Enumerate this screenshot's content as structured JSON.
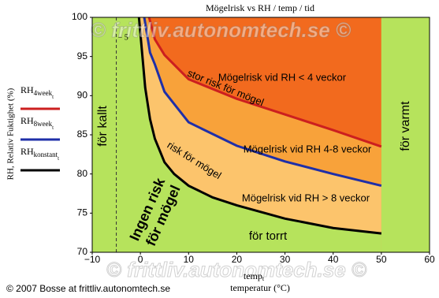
{
  "chart_data": {
    "type": "line",
    "title": "Mögelrisk vs RH / temp / tid",
    "y_label": "RH, Relativ Fuktighet (%)",
    "x_label": {
      "main": "temp",
      "sub": "t",
      "text": "temperatur (°C)"
    },
    "copyright": "© 2007 Bosse at frittliv.autonomtech.se",
    "watermark": "© frittliv.autonomtech.se ©",
    "xlim": [
      -10,
      60
    ],
    "xticks": [
      {
        "value": -10,
        "label": "−10"
      },
      0,
      10,
      20,
      30,
      40,
      50,
      60
    ],
    "ylim": [
      70,
      100
    ],
    "yticks": [
      70,
      75,
      80,
      85,
      90,
      95,
      100
    ],
    "vlines": [
      {
        "value": -5,
        "label": "− 5"
      }
    ],
    "ok_range": [
      0,
      50
    ],
    "background_color": "#b6e35c",
    "series": [
      {
        "name": "RH",
        "name_sub": "4week",
        "name_subsub": "t",
        "color": "#cc1f1f",
        "fill": "#f26a1e",
        "x": [
          1.8,
          3,
          5,
          10,
          20,
          30,
          40,
          50
        ],
        "values": [
          100,
          97.2,
          95.2,
          92.1,
          89.6,
          87.6,
          85.6,
          83.5
        ]
      },
      {
        "name": "RH",
        "name_sub": "8week",
        "name_subsub": "t",
        "color": "#1f2fa8",
        "fill": "#f8a23a",
        "x": [
          0.8,
          2,
          3,
          5,
          10,
          20,
          30,
          40,
          50
        ],
        "values": [
          100,
          95.5,
          94,
          90.5,
          86.6,
          83.6,
          81.6,
          80,
          78.5
        ]
      },
      {
        "name": "RH",
        "name_sub": "konstant",
        "name_subsub": "t",
        "color": "#000000",
        "fill": "#fcc46c",
        "x": [
          -0.3,
          1,
          2,
          3,
          5,
          7,
          10,
          15,
          20,
          30,
          40,
          50
        ],
        "values": [
          100,
          91,
          87,
          84.5,
          81.5,
          80,
          78.5,
          77,
          76,
          74.3,
          73.1,
          72.4
        ]
      }
    ],
    "annotations": [
      "för kallt",
      "för varmt",
      "stor risk för mögel",
      "Mögelrisk vid RH < 4 veckor",
      "Mögelrisk vid RH 4-8 veckor",
      "risk för mögel",
      "Mögelrisk vid RH > 8 veckor",
      "Ingen risk",
      "för mögel",
      "för torrt"
    ]
  }
}
